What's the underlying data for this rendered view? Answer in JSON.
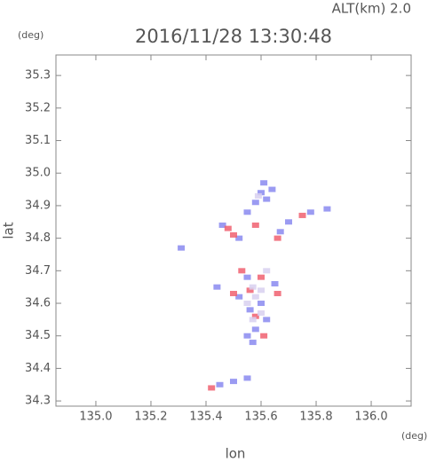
{
  "chart_data": {
    "type": "scatter",
    "title": "2016/11/28 13:30:48",
    "annotation": "ALT(km) 2.0",
    "y_unit": "(deg)",
    "x_unit": "(deg)",
    "xlabel": "lon",
    "ylabel": "lat",
    "xlim": [
      134.855,
      136.145
    ],
    "ylim": [
      34.284,
      35.363
    ],
    "xticks": [
      {
        "value": 135,
        "label": "135.0"
      },
      135.2,
      135.4,
      135.6,
      135.8,
      {
        "value": 136,
        "label": "136.0"
      }
    ],
    "yticks": [
      34.3,
      34.4,
      34.5,
      34.6,
      34.7,
      34.8,
      34.9,
      {
        "value": 35,
        "label": "35.0"
      },
      35.1,
      35.2,
      35.3
    ],
    "series": [
      {
        "color": "#8a8af0",
        "x": [
          135.6,
          135.62,
          135.58,
          135.64,
          135.61,
          135.46,
          135.55,
          135.7,
          135.78,
          135.84,
          135.67,
          135.52,
          135.31,
          135.44,
          135.52,
          135.56,
          135.6,
          135.58,
          135.55,
          135.57,
          135.62,
          135.65,
          135.55,
          135.45,
          135.5,
          135.55
        ],
        "values": [
          34.94,
          34.92,
          34.91,
          34.95,
          34.97,
          34.84,
          34.88,
          34.85,
          34.88,
          34.89,
          34.82,
          34.8,
          34.77,
          34.65,
          34.62,
          34.58,
          34.6,
          34.52,
          34.5,
          34.48,
          34.55,
          34.66,
          34.68,
          34.35,
          34.36,
          34.37
        ]
      },
      {
        "color": "#f06070",
        "x": [
          135.48,
          135.5,
          135.58,
          135.66,
          135.75,
          135.53,
          135.6,
          135.56,
          135.66,
          135.5,
          135.58,
          135.61,
          135.42
        ],
        "values": [
          34.83,
          34.81,
          34.84,
          34.8,
          34.87,
          34.7,
          34.68,
          34.64,
          34.63,
          34.63,
          34.56,
          34.5,
          34.34
        ]
      },
      {
        "color": "#d8d0f0",
        "x": [
          135.59,
          135.57,
          135.6,
          135.55,
          135.58,
          135.62,
          135.57,
          135.6
        ],
        "values": [
          34.93,
          34.65,
          34.64,
          34.6,
          34.62,
          34.7,
          34.55,
          34.57
        ]
      }
    ]
  }
}
